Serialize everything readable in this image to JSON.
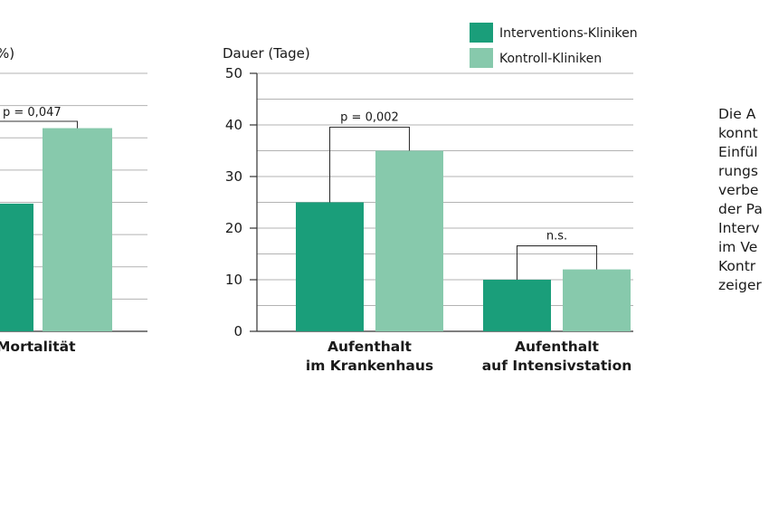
{
  "colors": {
    "intervention": "#1a9e7a",
    "control": "#87c9ac",
    "grid": "#b3b3b3",
    "axis": "#333333",
    "text": "#1a1a1a"
  },
  "legend": {
    "position": "top-right",
    "items": [
      "Interventions-Kliniken",
      "Kontroll-Kliniken"
    ]
  },
  "chart_data": [
    {
      "type": "bar",
      "title": "",
      "ylabel": "%)",
      "categories": [
        "Mortalität"
      ],
      "series": [
        {
          "name": "Interventions-Kliniken",
          "values": [
            19.8
          ]
        },
        {
          "name": "Kontroll-Kliniken",
          "values": [
            31.5
          ]
        }
      ],
      "ylim": [
        0,
        40
      ],
      "grid": true,
      "annotations": [
        {
          "category": "Mortalität",
          "text": "p = 0,047"
        }
      ]
    },
    {
      "type": "bar",
      "title": "",
      "ylabel": "Dauer (Tage)",
      "yticks": [
        0,
        10,
        20,
        30,
        40,
        50
      ],
      "categories": [
        [
          "Aufenthalt",
          "im Krankenhaus"
        ],
        [
          "Aufenthalt",
          "auf Intensivstation"
        ]
      ],
      "series": [
        {
          "name": "Interventions-Kliniken",
          "values": [
            25,
            10
          ]
        },
        {
          "name": "Kontroll-Kliniken",
          "values": [
            35,
            12
          ]
        }
      ],
      "ylim": [
        0,
        50
      ],
      "grid": true,
      "annotations": [
        {
          "category": "Aufenthalt im Krankenhaus",
          "text": "p = 0,002"
        },
        {
          "category": "Aufenthalt auf Intensivstation",
          "text": "n.s."
        }
      ]
    }
  ],
  "side_text": {
    "lines": [
      "Die A",
      "konnt",
      "Einfül",
      "rungs",
      "verbe",
      "der Pa",
      "Interv",
      "im Ve",
      "Kontr",
      "zeiger"
    ]
  }
}
